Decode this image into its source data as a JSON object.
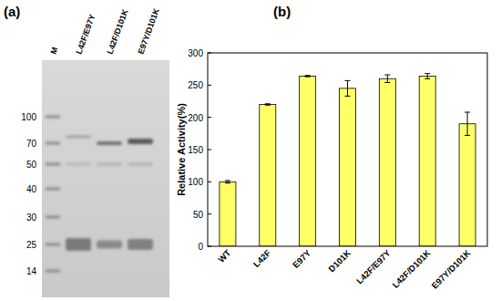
{
  "gel": {
    "panel_label": "(a)",
    "lanes": [
      "M",
      "L42F/E97Y",
      "L42F/D101K",
      "E97Y/D101K"
    ],
    "markers": [
      100,
      70,
      50,
      40,
      30,
      25,
      14
    ]
  },
  "chart_data": {
    "type": "bar",
    "title": "(b)",
    "y_label": "Relative Activity(%)",
    "categories": [
      "WT",
      "L42F",
      "E97Y",
      "D101K",
      "L42F/E97Y",
      "L42F/D101K",
      "E97Y/D101K"
    ],
    "values": [
      100,
      220,
      264,
      245,
      260,
      264,
      190
    ],
    "errors": [
      2,
      1,
      1,
      12,
      6,
      4,
      18
    ],
    "color": "#ffff66",
    "ylim": [
      0,
      300
    ],
    "yticks": [
      0,
      50,
      100,
      150,
      200,
      250,
      300
    ]
  }
}
